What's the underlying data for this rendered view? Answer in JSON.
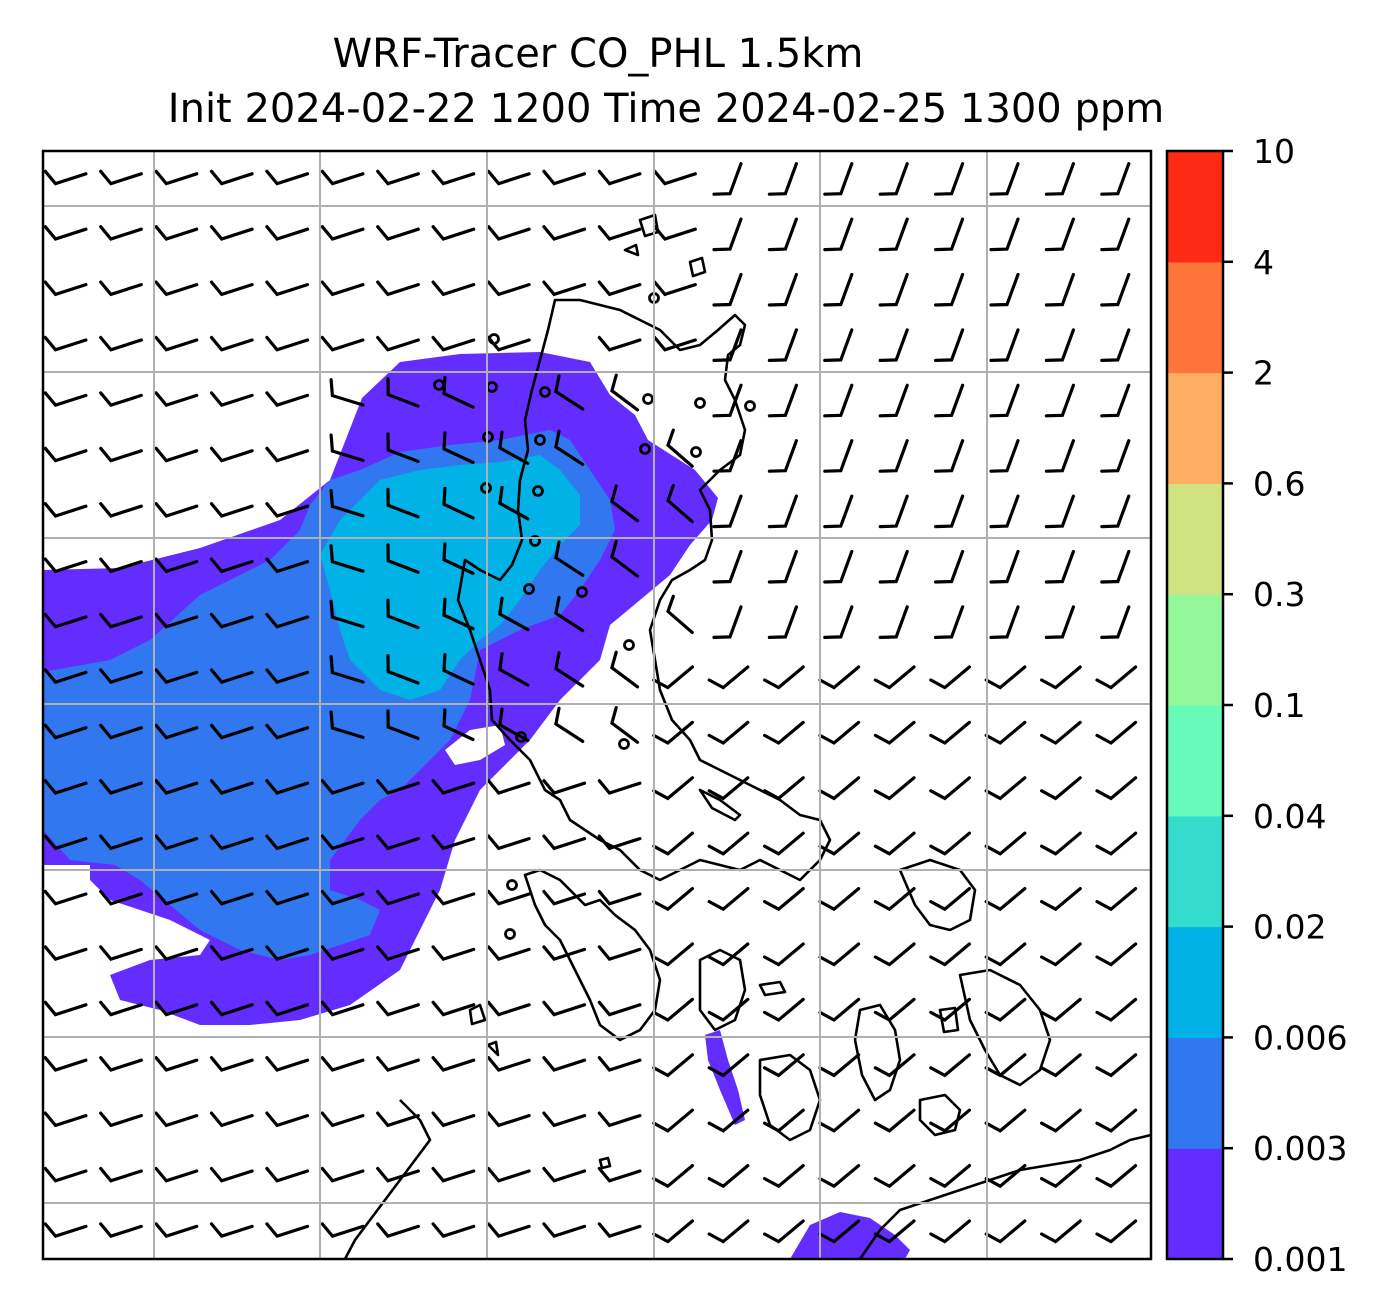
{
  "chart_data": {
    "type": "heatmap",
    "title": "WRF-Tracer CO_PHL 1.5km",
    "subtitle": "Init 2024-02-22 1200 Time 2024-02-25 1300 ppm",
    "xlabel": "",
    "ylabel": "",
    "grid": true,
    "colorbar": {
      "position": "right",
      "ticks": [
        "0.001",
        "0.003",
        "0.006",
        "0.02",
        "0.04",
        "0.1",
        "0.3",
        "0.6",
        "2",
        "4",
        "10"
      ],
      "levels": [
        0.001,
        0.003,
        0.006,
        0.02,
        0.04,
        0.1,
        0.3,
        0.6,
        2,
        4,
        10
      ],
      "colors": [
        "#632dff",
        "#3177f0",
        "#00b2e6",
        "#34dcce",
        "#66fbb9",
        "#94f79a",
        "#d0e281",
        "#fdae62",
        "#ff7438",
        "#ff2a13"
      ]
    },
    "overlays": [
      "wind barbs",
      "coastlines"
    ]
  }
}
